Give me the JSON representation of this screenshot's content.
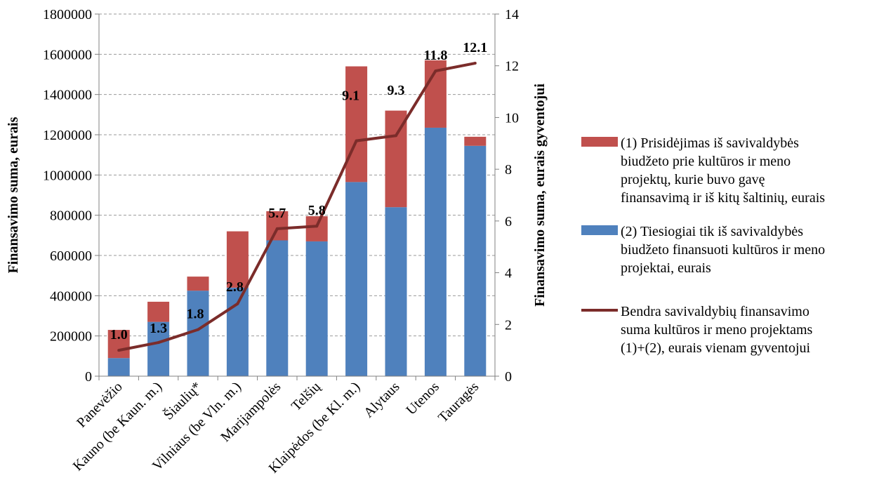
{
  "chart_data": {
    "type": "bar",
    "stacked": true,
    "categories": [
      "Panevėžio",
      "Kauno (be Kaun. m.)",
      "Šiaulių*",
      "Vilniaus (be Vln. m.)",
      "Marijampolės",
      "Telšių",
      "Klaipėdos (be Kl. m.)",
      "Alytaus",
      "Utenos",
      "Tauragės"
    ],
    "series": [
      {
        "name": "(2) Tiesiogiai tik iš savivaldybės biudžeto finansuoti kultūros ir meno projektai, eurais",
        "type": "bar",
        "axis": "left",
        "color": "#4F81BD",
        "values": [
          90000,
          270000,
          425000,
          440000,
          675000,
          670000,
          965000,
          840000,
          1235000,
          1145000
        ]
      },
      {
        "name": "(1) Prisidėjimas iš savivaldybės biudžeto prie kultūros ir meno projektų, kurie buvo gavę finansavimą ir iš kitų šaltinių, eurais",
        "type": "bar",
        "axis": "left",
        "color": "#C0504D",
        "values": [
          140000,
          100000,
          70000,
          280000,
          145000,
          125000,
          575000,
          480000,
          335000,
          45000
        ]
      },
      {
        "name": "Bendra savivaldybių finansavimo suma kultūros ir meno projektams (1)+(2), eurais vienam gyventojui",
        "type": "line",
        "axis": "right",
        "color": "#7B2C2A",
        "values": [
          1.0,
          1.3,
          1.8,
          2.8,
          5.7,
          5.8,
          9.1,
          9.3,
          11.8,
          12.1
        ],
        "labels": [
          "1.0",
          "1.3",
          "1.8",
          "2.8",
          "5.7",
          "5.8",
          "9.1",
          "9.3",
          "11.8",
          "12.1"
        ]
      }
    ],
    "ylabel": "Finansavimo suma, eurais",
    "y2label": "Finansavimo suma, eurais gyventojui",
    "ylim": [
      0,
      1800000
    ],
    "y2lim": [
      0,
      14
    ],
    "yticks": [
      "0",
      "200000",
      "400000",
      "600000",
      "800000",
      "1000000",
      "1200000",
      "1400000",
      "1600000",
      "1800000"
    ],
    "y2ticks": [
      "0",
      "2",
      "4",
      "6",
      "8",
      "10",
      "12",
      "14"
    ],
    "grid": true,
    "legend_position": "right",
    "legend": [
      {
        "color": "#C0504D",
        "kind": "box",
        "lines": [
          "(1) Prisidėjimas iš savivaldybės",
          "biudžeto prie kultūros ir meno",
          "projektų, kurie buvo gavę",
          "finansavimą ir iš kitų šaltinių, eurais"
        ]
      },
      {
        "color": "#4F81BD",
        "kind": "box",
        "lines": [
          "(2) Tiesiogiai tik iš savivaldybės",
          "biudžeto finansuoti kultūros ir meno",
          "projektai, eurais"
        ]
      },
      {
        "color": "#7B2C2A",
        "kind": "line",
        "lines": [
          "Bendra savivaldybių finansavimo",
          "suma kultūros ir meno projektams",
          "(1)+(2), eurais vienam gyventojui"
        ]
      }
    ]
  }
}
